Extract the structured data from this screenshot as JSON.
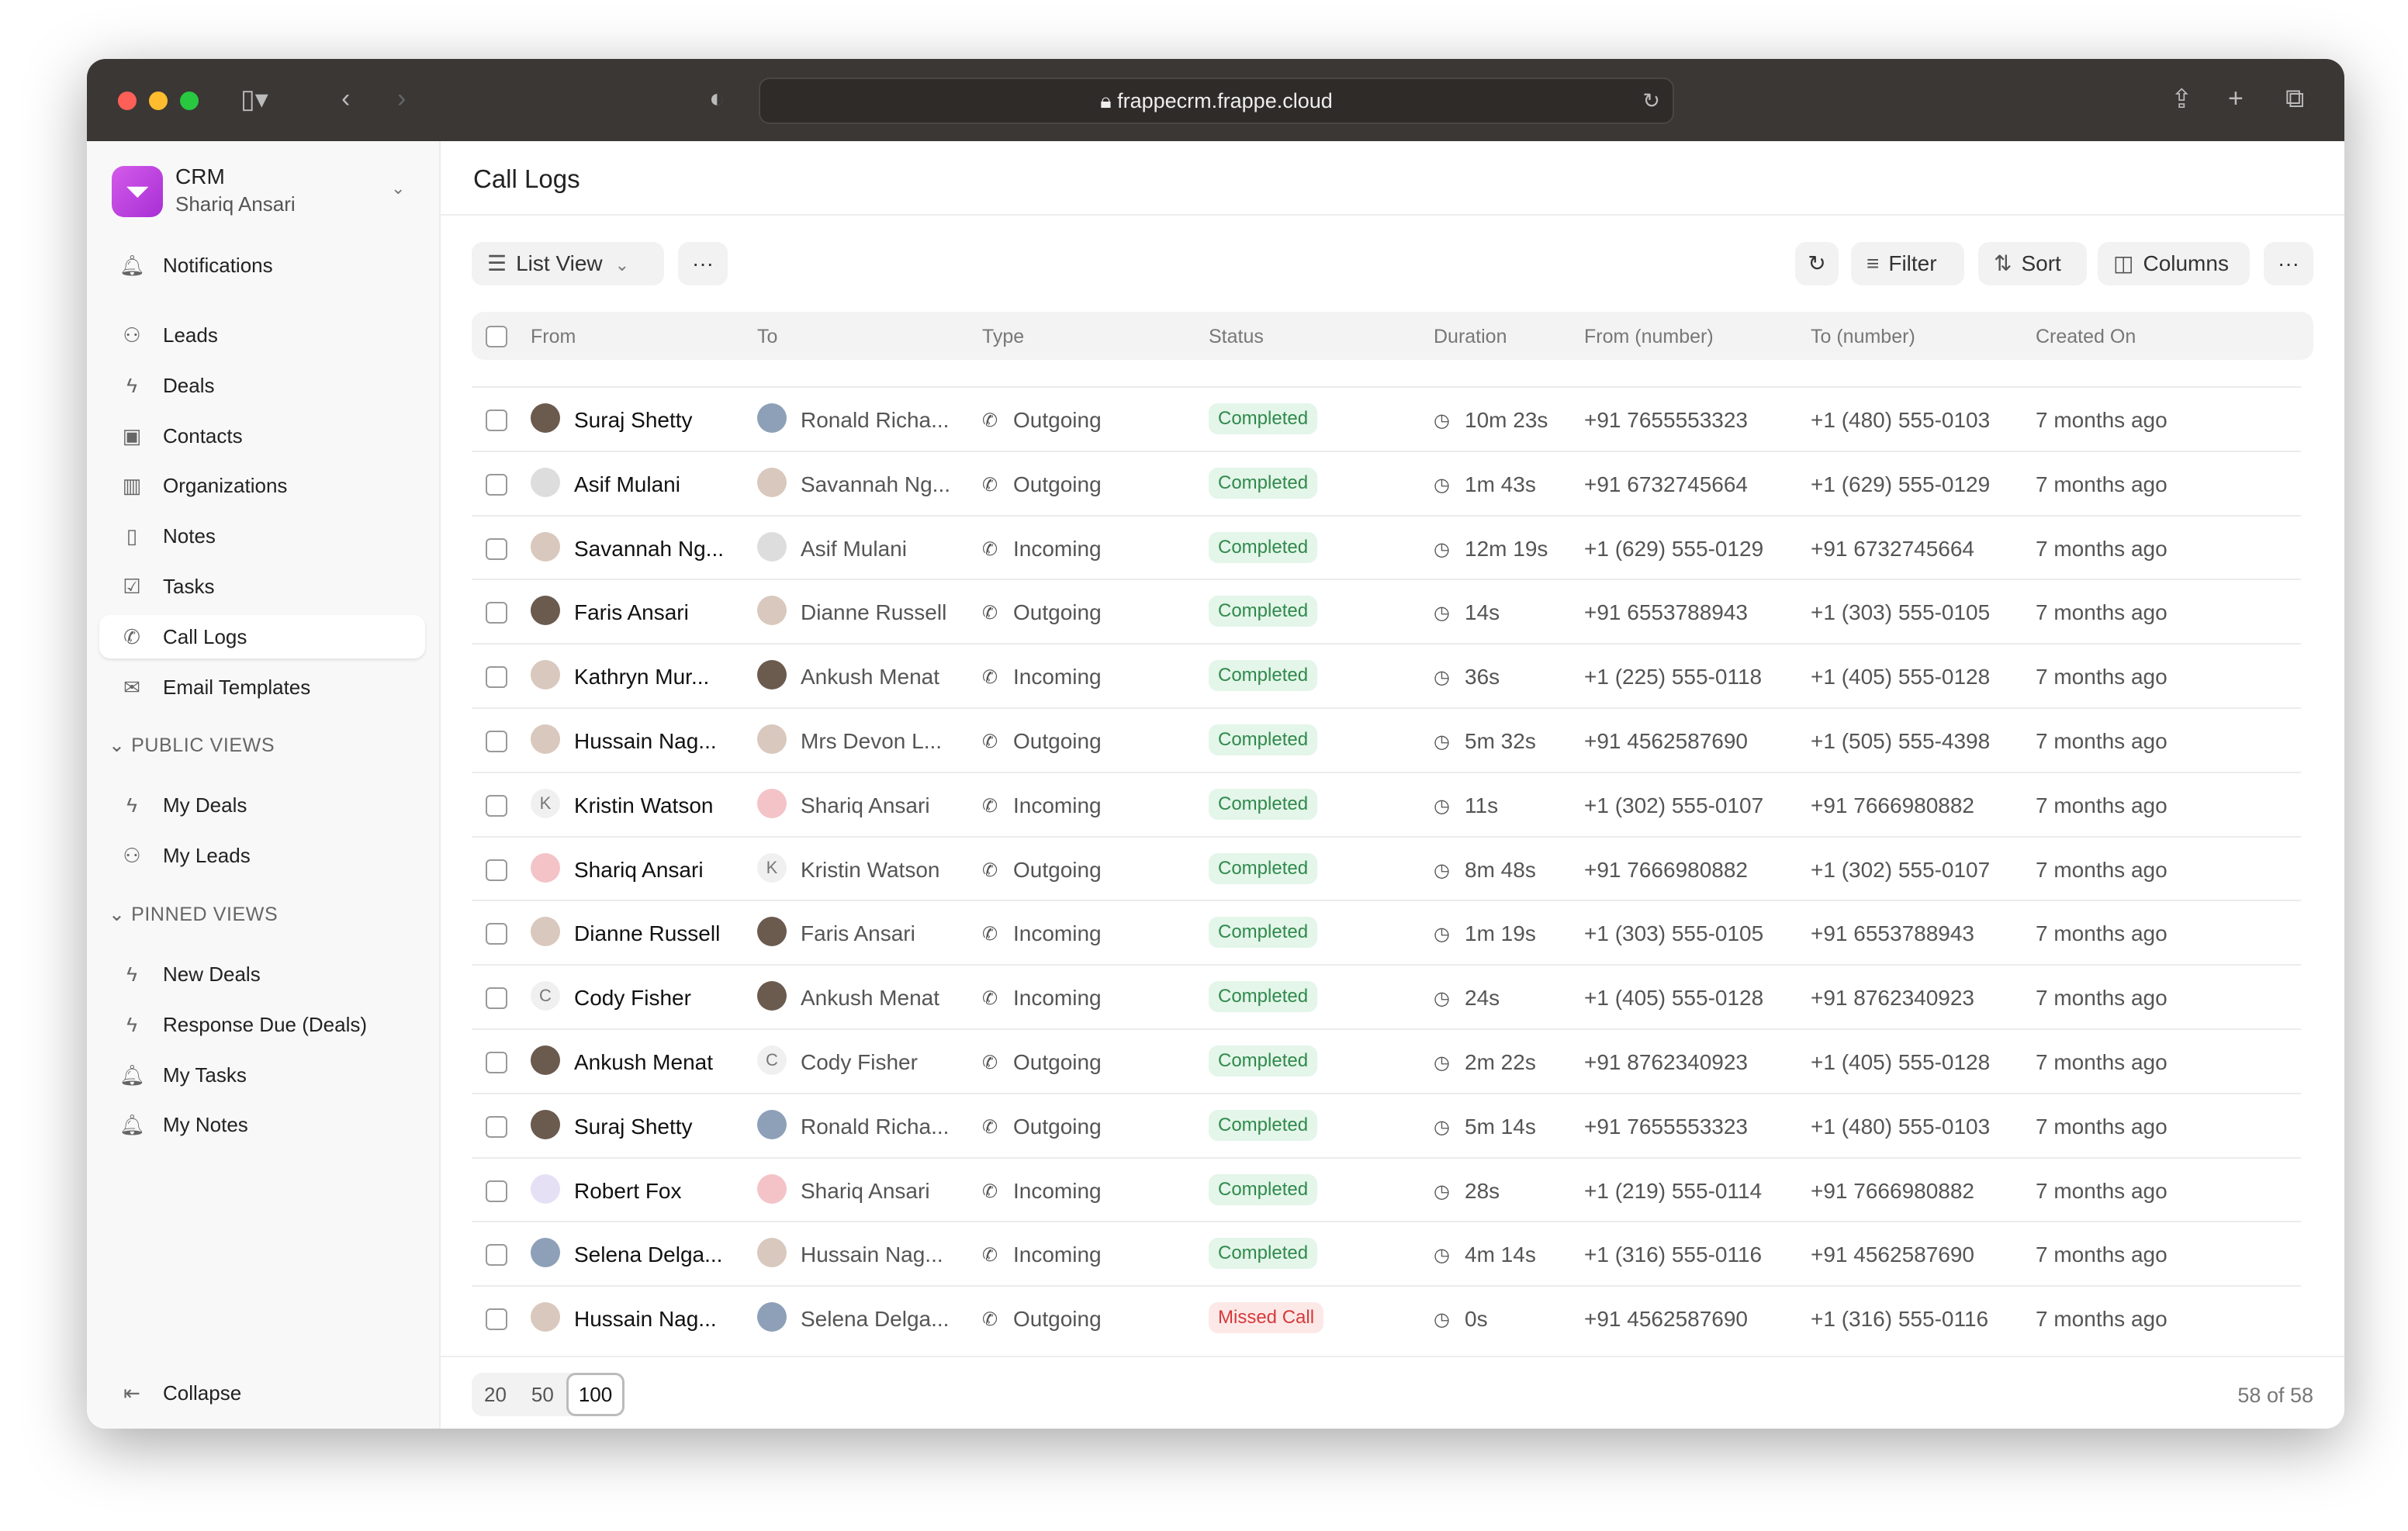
{
  "browser": {
    "url": "frappecrm.frappe.cloud"
  },
  "sidebar": {
    "app_name": "CRM",
    "user": "Shariq Ansari",
    "top": [
      {
        "label": "Notifications",
        "icon": "bell-icon"
      }
    ],
    "items": [
      {
        "label": "Leads",
        "icon": "users-icon"
      },
      {
        "label": "Deals",
        "icon": "lightning-icon"
      },
      {
        "label": "Contacts",
        "icon": "contact-icon"
      },
      {
        "label": "Organizations",
        "icon": "building-icon"
      },
      {
        "label": "Notes",
        "icon": "file-icon"
      },
      {
        "label": "Tasks",
        "icon": "checkbox-icon"
      },
      {
        "label": "Call Logs",
        "icon": "phone-icon",
        "active": true
      },
      {
        "label": "Email Templates",
        "icon": "mail-icon"
      }
    ],
    "public_views_label": "PUBLIC VIEWS",
    "public_views": [
      {
        "label": "My Deals",
        "icon": "lightning-icon"
      },
      {
        "label": "My Leads",
        "icon": "users-icon"
      }
    ],
    "pinned_views_label": "PINNED VIEWS",
    "pinned_views": [
      {
        "label": "New Deals",
        "icon": "lightning-icon"
      },
      {
        "label": "Response Due (Deals)",
        "icon": "lightning-icon"
      },
      {
        "label": "My Tasks",
        "icon": "bell-icon"
      },
      {
        "label": "My Notes",
        "icon": "bell-icon"
      }
    ],
    "collapse": "Collapse"
  },
  "page": {
    "title": "Call Logs"
  },
  "toolbar": {
    "view": "List View",
    "filter": "Filter",
    "sort": "Sort",
    "columns": "Columns"
  },
  "table": {
    "columns": [
      "From",
      "To",
      "Type",
      "Status",
      "Duration",
      "From (number)",
      "To (number)",
      "Created On"
    ],
    "rows": [
      [
        "Suraj Shetty",
        "Ronald Richa...",
        "Outgoing",
        "Completed",
        "10m 23s",
        "+91 7655553323",
        "+1 (480) 555-0103",
        "7 months ago"
      ],
      [
        "Asif Mulani",
        "Savannah Ng...",
        "Outgoing",
        "Completed",
        "1m 43s",
        "+91 6732745664",
        "+1 (629) 555-0129",
        "7 months ago"
      ],
      [
        "Savannah Ng...",
        "Asif Mulani",
        "Incoming",
        "Completed",
        "12m 19s",
        "+1 (629) 555-0129",
        "+91 6732745664",
        "7 months ago"
      ],
      [
        "Faris Ansari",
        "Dianne Russell",
        "Outgoing",
        "Completed",
        "14s",
        "+91 6553788943",
        "+1 (303) 555-0105",
        "7 months ago"
      ],
      [
        "Kathryn Mur...",
        "Ankush Menat",
        "Incoming",
        "Completed",
        "36s",
        "+1 (225) 555-0118",
        "+1 (405) 555-0128",
        "7 months ago"
      ],
      [
        "Hussain Nag...",
        "Mrs Devon L...",
        "Outgoing",
        "Completed",
        "5m 32s",
        "+91 4562587690",
        "+1 (505) 555-4398",
        "7 months ago"
      ],
      [
        "Kristin Watson",
        "Shariq Ansari",
        "Incoming",
        "Completed",
        "11s",
        "+1 (302) 555-0107",
        "+91 7666980882",
        "7 months ago"
      ],
      [
        "Shariq Ansari",
        "Kristin Watson",
        "Outgoing",
        "Completed",
        "8m 48s",
        "+91 7666980882",
        "+1 (302) 555-0107",
        "7 months ago"
      ],
      [
        "Dianne Russell",
        "Faris Ansari",
        "Incoming",
        "Completed",
        "1m 19s",
        "+1 (303) 555-0105",
        "+91 6553788943",
        "7 months ago"
      ],
      [
        "Cody Fisher",
        "Ankush Menat",
        "Incoming",
        "Completed",
        "24s",
        "+1 (405) 555-0128",
        "+91 8762340923",
        "7 months ago"
      ],
      [
        "Ankush Menat",
        "Cody Fisher",
        "Outgoing",
        "Completed",
        "2m 22s",
        "+91 8762340923",
        "+1 (405) 555-0128",
        "7 months ago"
      ],
      [
        "Suraj Shetty",
        "Ronald Richa...",
        "Outgoing",
        "Completed",
        "5m 14s",
        "+91 7655553323",
        "+1 (480) 555-0103",
        "7 months ago"
      ],
      [
        "Robert Fox",
        "Shariq Ansari",
        "Incoming",
        "Completed",
        "28s",
        "+1 (219) 555-0114",
        "+91 7666980882",
        "7 months ago"
      ],
      [
        "Selena Delga...",
        "Hussain Nag...",
        "Incoming",
        "Completed",
        "4m 14s",
        "+1 (316) 555-0116",
        "+91 4562587690",
        "7 months ago"
      ],
      [
        "Hussain Nag...",
        "Selena Delga...",
        "Outgoing",
        "Missed Call",
        "0s",
        "+91 4562587690",
        "+1 (316) 555-0116",
        "7 months ago"
      ]
    ]
  },
  "pagination": {
    "options": [
      "20",
      "50",
      "100"
    ],
    "selected": "100",
    "count": "58 of 58"
  },
  "colors": {
    "completed_bg": "#e4f5e9",
    "completed_fg": "#2f8a4c",
    "missed_bg": "#fde8e8",
    "missed_fg": "#d63a3a",
    "brand": "#c445e0"
  }
}
